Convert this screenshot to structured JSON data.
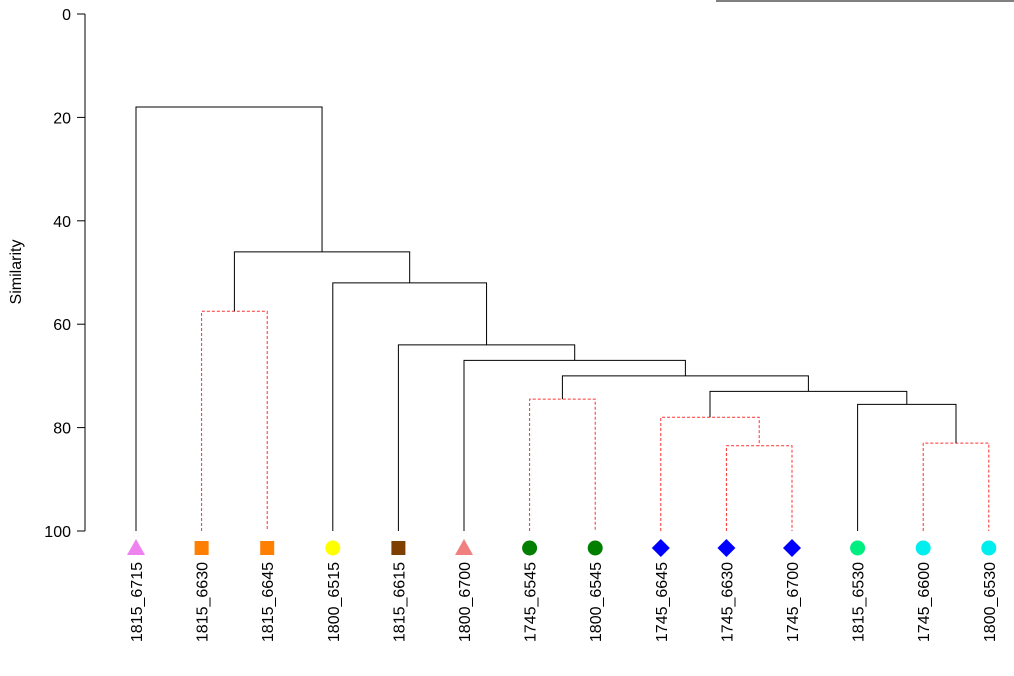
{
  "chart_data": {
    "type": "dendrogram",
    "ylabel": "Similarity",
    "ylim": [
      0,
      100
    ],
    "yticks": [
      0,
      20,
      40,
      60,
      80,
      100
    ],
    "leaves": [
      {
        "label": "1815_6715",
        "marker": "triangle",
        "color": "#ee82ee"
      },
      {
        "label": "1815_6630",
        "marker": "square",
        "color": "#ff7f00"
      },
      {
        "label": "1815_6645",
        "marker": "square",
        "color": "#ff7f00"
      },
      {
        "label": "1800_6515",
        "marker": "circle",
        "color": "#ffff00"
      },
      {
        "label": "1815_6615",
        "marker": "square",
        "color": "#7f3f00"
      },
      {
        "label": "1800_6700",
        "marker": "triangle",
        "color": "#f08080"
      },
      {
        "label": "1745_6545",
        "marker": "circle",
        "color": "#007f00"
      },
      {
        "label": "1800_6545",
        "marker": "circle",
        "color": "#007f00"
      },
      {
        "label": "1745_6645",
        "marker": "diamond",
        "color": "#0000ff"
      },
      {
        "label": "1745_6630",
        "marker": "diamond",
        "color": "#0000ff"
      },
      {
        "label": "1745_6700",
        "marker": "diamond",
        "color": "#0000ff"
      },
      {
        "label": "1815_6530",
        "marker": "circle",
        "color": "#00ee7f"
      },
      {
        "label": "1745_6600",
        "marker": "circle",
        "color": "#00eeee"
      },
      {
        "label": "1800_6530",
        "marker": "circle",
        "color": "#00eeee"
      }
    ],
    "merges": [
      {
        "id": "m1",
        "left": "1815_6630",
        "right": "1815_6645",
        "similarity": 57.5,
        "style": "dashed-red"
      },
      {
        "id": "m2",
        "left": "1745_6545",
        "right": "1800_6545",
        "similarity": 74.5,
        "style": "dashed-red"
      },
      {
        "id": "m3",
        "left": "1745_6630",
        "right": "1745_6700",
        "similarity": 83.5,
        "style": "dashed-red"
      },
      {
        "id": "m4",
        "left": "1745_6600",
        "right": "1800_6530",
        "similarity": 83.0,
        "style": "dashed-red"
      },
      {
        "id": "m5",
        "left": "1745_6645",
        "right": "m3",
        "similarity": 78.0,
        "style": "dashed-red"
      },
      {
        "id": "m6",
        "left": "1815_6530",
        "right": "m4",
        "similarity": 75.5,
        "style": "solid"
      },
      {
        "id": "m7",
        "left": "m5",
        "right": "m6",
        "similarity": 73.0,
        "style": "solid"
      },
      {
        "id": "m8",
        "left": "m2",
        "right": "m7",
        "similarity": 70.0,
        "style": "solid"
      },
      {
        "id": "m9",
        "left": "1800_6700",
        "right": "m8",
        "similarity": 67.0,
        "style": "solid"
      },
      {
        "id": "m10",
        "left": "1815_6615",
        "right": "m9",
        "similarity": 64.0,
        "style": "solid"
      },
      {
        "id": "m11",
        "left": "1800_6515",
        "right": "m10",
        "similarity": 52.0,
        "style": "solid"
      },
      {
        "id": "m12",
        "left": "m1",
        "right": "m11",
        "similarity": 46.0,
        "style": "solid"
      },
      {
        "id": "m13",
        "left": "1815_6715",
        "right": "m12",
        "similarity": 18.0,
        "style": "solid"
      }
    ],
    "colors": {
      "solid": "#000000",
      "dashed": "#ff3030"
    }
  }
}
